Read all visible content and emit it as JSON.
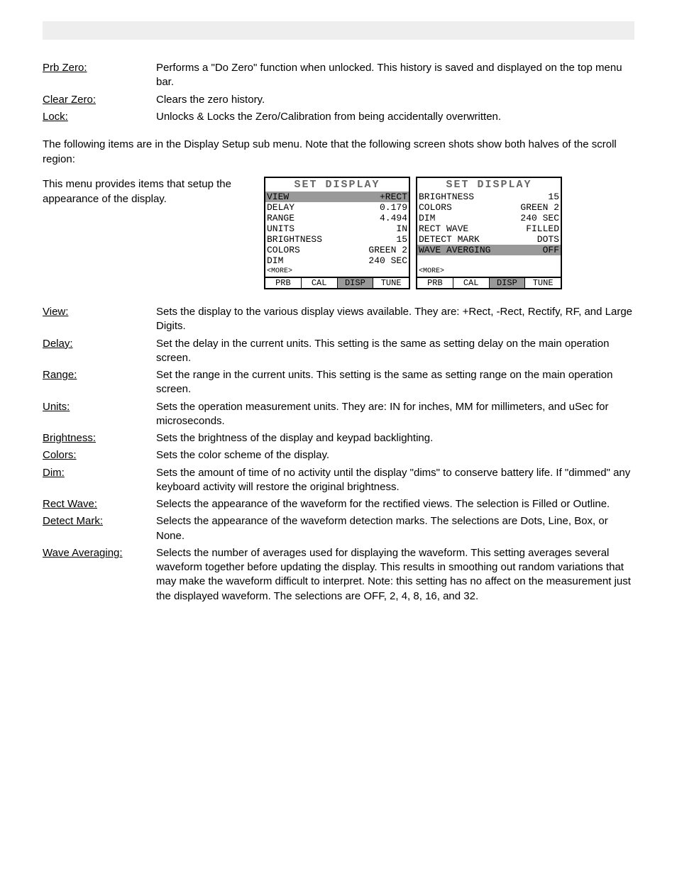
{
  "running": {
    "left": "",
    "right": ""
  },
  "defs_top": [
    {
      "term": "Prb Zero:",
      "desc": "Performs a \"Do Zero\" function when unlocked. This history is saved and displayed on the top menu bar."
    },
    {
      "term": "Clear Zero:",
      "desc": "Clears the zero history."
    },
    {
      "term": "Lock:",
      "desc": "Unlocks & Locks the Zero/Calibration from being accidentally overwritten."
    }
  ],
  "body1": "The following items are in the Display Setup sub menu. Note that the following screen shots show both halves of the scroll region:",
  "figure_intro": "This menu provides items that setup the appearance of the display.",
  "lcd_left": {
    "title": "SET DISPLAY",
    "rows": [
      {
        "l": "VIEW",
        "r": "+RECT",
        "inv": true
      },
      {
        "l": "DELAY",
        "r": "0.179"
      },
      {
        "l": "RANGE",
        "r": "4.494"
      },
      {
        "l": "UNITS",
        "r": "IN"
      },
      {
        "l": "BRIGHTNESS",
        "r": "15"
      },
      {
        "l": "COLORS",
        "r": "GREEN 2"
      },
      {
        "l": "DIM",
        "r": "240 SEC"
      }
    ],
    "more": "<MORE>",
    "tabs": [
      {
        "t": "PRB",
        "inv": false
      },
      {
        "t": "CAL",
        "inv": false
      },
      {
        "t": "DISP",
        "inv": true
      },
      {
        "t": "TUNE",
        "inv": false
      }
    ]
  },
  "lcd_right": {
    "title": "SET DISPLAY",
    "rows": [
      {
        "l": "BRIGHTNESS",
        "r": "15"
      },
      {
        "l": "COLORS",
        "r": "GREEN 2"
      },
      {
        "l": "DIM",
        "r": "240 SEC"
      },
      {
        "l": "RECT WAVE",
        "r": "FILLED"
      },
      {
        "l": "DETECT MARK",
        "r": "DOTS"
      },
      {
        "l": "WAVE AVERGING",
        "r": "OFF",
        "inv": true
      },
      {
        "l": "",
        "r": ""
      }
    ],
    "more": "<MORE>",
    "tabs": [
      {
        "t": "PRB",
        "inv": false
      },
      {
        "t": "CAL",
        "inv": false
      },
      {
        "t": "DISP",
        "inv": true
      },
      {
        "t": "TUNE",
        "inv": false
      }
    ]
  },
  "disp_defs": [
    {
      "term": "View:",
      "desc": "Sets the display to the various display views available. They are: +Rect, -Rect, Rectify, RF, and Large Digits."
    },
    {
      "term": "Delay:",
      "desc": "Set the delay in the current units. This setting is the same as setting delay on the main operation screen."
    },
    {
      "term": "Range:",
      "desc": "Set the range in the current units. This setting is the same as setting range on the main operation screen."
    },
    {
      "term": "Units:",
      "desc": "Sets the operation measurement units. They are: IN for inches, MM for millimeters, and uSec for microseconds."
    },
    {
      "term": "Brightness:",
      "desc": "Sets the brightness of the display and keypad backlighting."
    },
    {
      "term": "Colors:",
      "desc": "Sets the color scheme of the display."
    },
    {
      "term": "Dim:",
      "desc": "Sets the amount of time of no activity until the display \"dims\" to conserve battery life. If \"dimmed\" any keyboard activity will restore the original brightness."
    },
    {
      "term": "Rect Wave:",
      "desc": "Selects the appearance of the waveform for the rectified views. The selection is Filled or Outline."
    },
    {
      "term": "Detect Mark:",
      "desc": "Selects the appearance of the waveform detection marks. The selections are Dots, Line, Box, or None."
    },
    {
      "term": "Wave Averaging:",
      "desc": "Selects the number of averages used for displaying the waveform. This setting averages several waveform together before updating the display. This results in smoothing out random variations that may make the waveform difficult to interpret. Note: this setting has no affect on the measurement just the displayed waveform. The selections are OFF, 2, 4, 8, 16, and 32."
    }
  ]
}
